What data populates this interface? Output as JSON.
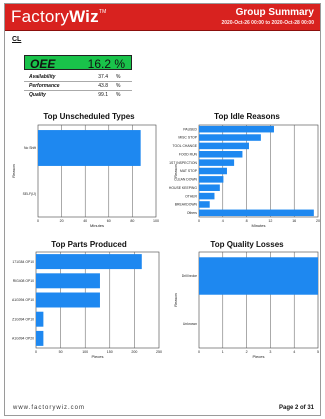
{
  "header": {
    "logo_text": "Factory",
    "logo_bold": "Wiz",
    "logo_tm": "TM",
    "title": "Group Summary",
    "date_range": "2020-Oct-26 00:00 to 2020-Oct-28 00:00"
  },
  "cell_label": "CL",
  "oee": {
    "label": "OEE",
    "value": "16.2 %",
    "metrics": [
      {
        "name": "Availability",
        "value": "37.4",
        "unit": "%"
      },
      {
        "name": "Performance",
        "value": "43.8",
        "unit": "%"
      },
      {
        "name": "Quality",
        "value": "99.1",
        "unit": "%"
      }
    ]
  },
  "colors": {
    "header": "#d8221f",
    "oee_green": "#19c34a",
    "bar": "#1e88f0"
  },
  "footer": {
    "url": "www.factorywiz.com",
    "page": "Page 2 of 31"
  },
  "chart_data": [
    {
      "type": "bar",
      "orientation": "horizontal",
      "title": "Top Unscheduled Types",
      "categories": [
        "No Shift",
        "SELF(IJ)"
      ],
      "values": [
        87,
        0
      ],
      "xlabel": "Minutes",
      "ylabel": "Reason",
      "xlim": [
        0,
        100
      ],
      "xticks": [
        "0",
        "20",
        "40",
        "60",
        "80",
        "100"
      ],
      "grid": true
    },
    {
      "type": "bar",
      "orientation": "horizontal",
      "title": "Top Idle Reasons",
      "categories": [
        "PAUSED",
        "MISC STOP",
        "TOOL CHANGE",
        "FOOD RUN",
        "1ST INSPECTION",
        "MAT STOP",
        "CLEAN DOWN",
        "HOUSE KEEPING",
        "OTHER",
        "BREAKDOWN",
        "Others"
      ],
      "values": [
        12.6,
        10.4,
        8.4,
        7.3,
        5.9,
        4.7,
        4.1,
        3.5,
        2.6,
        1.8,
        19.3
      ],
      "xlabel": "Minutes",
      "ylabel": "Reason",
      "xlim": [
        0,
        20
      ],
      "xticks": [
        "0",
        "4",
        "8",
        "12",
        "16",
        "20"
      ],
      "grid": true
    },
    {
      "type": "bar",
      "orientation": "horizontal",
      "title": "Top Parts Produced",
      "categories": [
        "171G84 OP10",
        "RIG408 OP10",
        "A1G094 OP10",
        "Z1G094 OP10",
        "A1G094 OP20"
      ],
      "values": [
        215,
        130,
        130,
        15,
        15
      ],
      "xlabel": "Pieces",
      "ylabel": "",
      "xlim": [
        0,
        250
      ],
      "xticks": [
        "0",
        "50",
        "100",
        "150",
        "200",
        "250"
      ],
      "grid": true
    },
    {
      "type": "bar",
      "orientation": "horizontal",
      "title": "Top Quality Losses",
      "categories": [
        "Drill broke",
        "Unknown"
      ],
      "values": [
        5,
        0
      ],
      "xlabel": "Pieces",
      "ylabel": "Reason",
      "xlim": [
        0,
        5
      ],
      "xticks": [
        "0",
        "1",
        "2",
        "3",
        "4",
        "5"
      ],
      "grid": true
    }
  ]
}
